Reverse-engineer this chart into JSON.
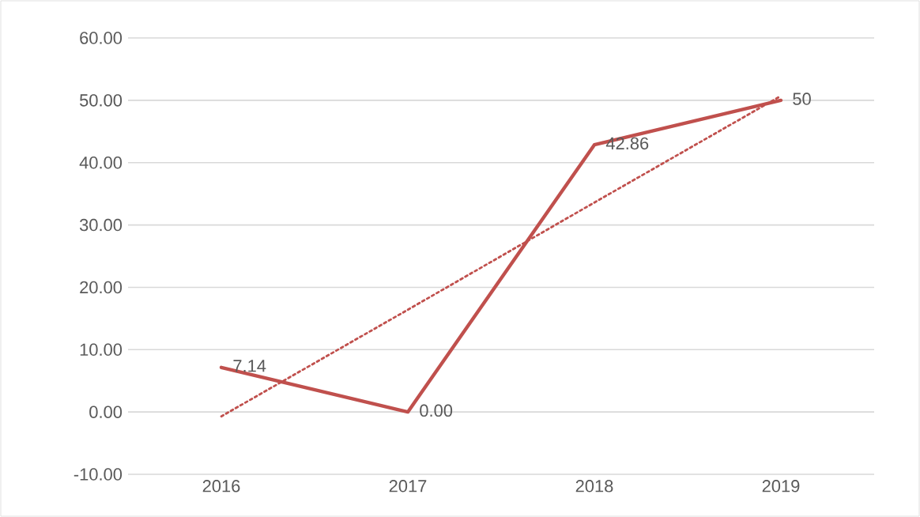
{
  "chart_data": {
    "type": "line",
    "categories": [
      "2016",
      "2017",
      "2018",
      "2019"
    ],
    "series": [
      {
        "color": "#c0504d",
        "values": [
          7.14,
          0,
          42.86,
          50
        ],
        "value_labels": [
          "7.14",
          "0.00",
          "42.86",
          "50"
        ],
        "line_style": "solid"
      },
      {
        "color": "#c0504d",
        "values": [
          -0.7,
          16.4,
          33.6,
          50.7
        ],
        "line_style": "dotted"
      }
    ],
    "ylim": [
      -10,
      60
    ],
    "yticks": [
      {
        "value": -10,
        "label": "-10.00"
      },
      {
        "value": 0,
        "label": "0.00"
      },
      {
        "value": 10,
        "label": "10.00"
      },
      {
        "value": 20,
        "label": "20.00"
      },
      {
        "value": 30,
        "label": "30.00"
      },
      {
        "value": 40,
        "label": "40.00"
      },
      {
        "value": 50,
        "label": "50.00"
      },
      {
        "value": 60,
        "label": "60.00"
      }
    ],
    "grid": "y",
    "marker": "none"
  }
}
